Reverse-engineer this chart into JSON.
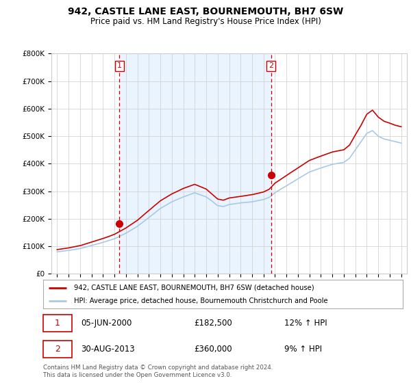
{
  "title": "942, CASTLE LANE EAST, BOURNEMOUTH, BH7 6SW",
  "subtitle": "Price paid vs. HM Land Registry's House Price Index (HPI)",
  "legend_line1": "942, CASTLE LANE EAST, BOURNEMOUTH, BH7 6SW (detached house)",
  "legend_line2": "HPI: Average price, detached house, Bournemouth Christchurch and Poole",
  "purchase1_label": "1",
  "purchase1_date": "05-JUN-2000",
  "purchase1_price": "£182,500",
  "purchase1_hpi": "12% ↑ HPI",
  "purchase1_year": 2000.44,
  "purchase1_value": 182500,
  "purchase2_label": "2",
  "purchase2_date": "30-AUG-2013",
  "purchase2_price": "£360,000",
  "purchase2_hpi": "9% ↑ HPI",
  "purchase2_year": 2013.66,
  "purchase2_value": 360000,
  "footer": "Contains HM Land Registry data © Crown copyright and database right 2024.\nThis data is licensed under the Open Government Licence v3.0.",
  "hpi_color": "#a8c8e8",
  "price_color": "#cc0000",
  "vline_color": "#cc0000",
  "fill_color": "#ddeeff",
  "background_color": "#ffffff",
  "grid_color": "#cccccc",
  "ylim": [
    0,
    800000
  ],
  "yticks": [
    0,
    100000,
    200000,
    300000,
    400000,
    500000,
    600000,
    700000,
    800000
  ],
  "xmin": 1994.5,
  "xmax": 2025.5
}
